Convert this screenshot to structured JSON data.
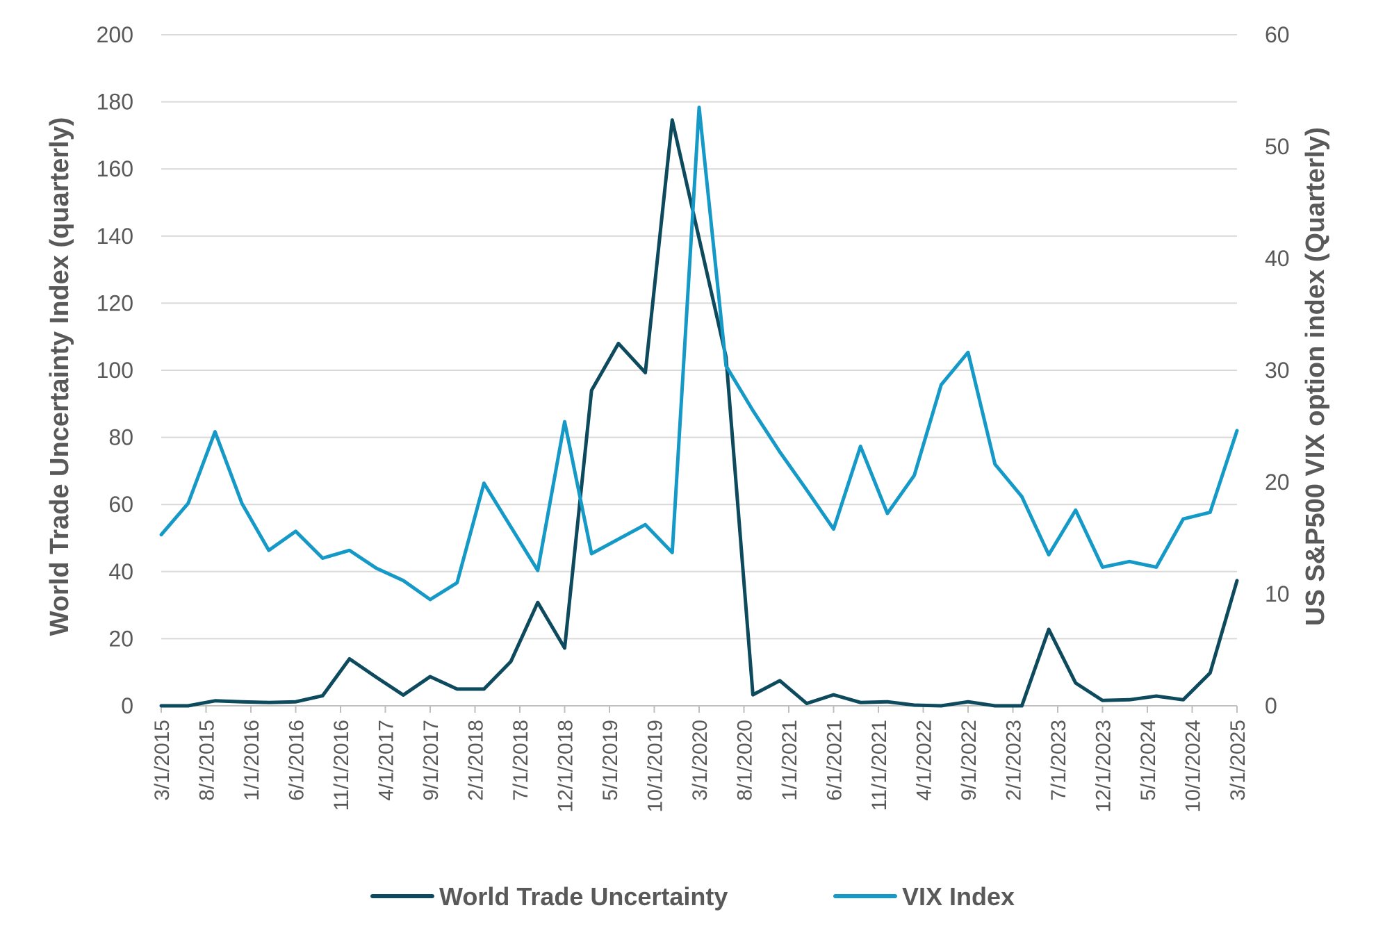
{
  "chart_data": {
    "type": "line",
    "x": [
      "3/1/2015",
      "6/1/2015",
      "9/1/2015",
      "12/1/2015",
      "3/1/2016",
      "6/1/2016",
      "9/1/2016",
      "12/1/2016",
      "3/1/2017",
      "6/1/2017",
      "9/1/2017",
      "12/1/2017",
      "3/1/2018",
      "6/1/2018",
      "9/1/2018",
      "12/1/2018",
      "3/1/2019",
      "6/1/2019",
      "9/1/2019",
      "12/1/2019",
      "3/1/2020",
      "6/1/2020",
      "9/1/2020",
      "12/1/2020",
      "3/1/2021",
      "6/1/2021",
      "9/1/2021",
      "12/1/2021",
      "3/1/2022",
      "6/1/2022",
      "9/1/2022",
      "12/1/2022",
      "3/1/2023",
      "6/1/2023",
      "9/1/2023",
      "12/1/2023",
      "3/1/2024",
      "6/1/2024",
      "9/1/2024",
      "12/1/2024",
      "3/1/2025"
    ],
    "x_tick_labels": [
      "3/1/2015",
      "8/1/2015",
      "1/1/2016",
      "6/1/2016",
      "11/1/2016",
      "4/1/2017",
      "9/1/2017",
      "2/1/2018",
      "7/1/2018",
      "12/1/2018",
      "5/1/2019",
      "10/1/2019",
      "3/1/2020",
      "8/1/2020",
      "1/1/2021",
      "6/1/2021",
      "11/1/2021",
      "4/1/2022",
      "9/1/2022",
      "2/1/2023",
      "7/1/2023",
      "12/1/2023",
      "5/1/2024",
      "10/1/2024",
      "3/1/2025"
    ],
    "series": [
      {
        "name": "World Trade Uncertainty",
        "axis": "left",
        "color": "#0d4a5e",
        "values": [
          0,
          0,
          1.5,
          1.2,
          1,
          1.2,
          3,
          14,
          8.5,
          3.2,
          8.7,
          5,
          5,
          13.2,
          30.8,
          17.2,
          94,
          108,
          99.3,
          174.6,
          null,
          104,
          3.3,
          7.5,
          0.7,
          3.3,
          1,
          1.2,
          0.2,
          0,
          1.2,
          0,
          0,
          22.8,
          6.8,
          1.6,
          1.8,
          2.9,
          1.8,
          9.8,
          37.3
        ],
        "null_note_skip": true
      },
      {
        "name": "VIX Index",
        "axis": "right",
        "color": "#1599c7",
        "values": [
          15.3,
          18.1,
          24.5,
          18.1,
          13.9,
          15.6,
          13.2,
          13.9,
          12.3,
          11.2,
          9.5,
          11,
          19.9,
          16,
          12.1,
          25.4,
          13.6,
          14.9,
          16.2,
          13.7,
          53.5,
          30.4,
          26.4,
          22.7,
          19.3,
          15.8,
          23.2,
          17.2,
          20.6,
          28.7,
          31.6,
          21.6,
          18.7,
          13.5,
          17.5,
          12.4,
          12.9,
          12.4,
          16.7,
          17.3,
          24.6
        ]
      }
    ],
    "ylabel": "World Trade Uncertainty Index (quarterly)",
    "y2label": "US S&P500 VIX option index (Quarterly)",
    "ylim": [
      0,
      200
    ],
    "y_ticks": [
      "0",
      "20",
      "40",
      "60",
      "80",
      "100",
      "120",
      "140",
      "160",
      "180",
      "200"
    ],
    "y2lim": [
      0,
      60
    ],
    "y2_ticks": [
      "0",
      "10",
      "20",
      "30",
      "40",
      "50",
      "60"
    ],
    "grid": true,
    "legend_position": "bottom",
    "colors": {
      "grid": "#d9d9d9",
      "axis": "#bfbfbf",
      "text": "#595959"
    }
  }
}
